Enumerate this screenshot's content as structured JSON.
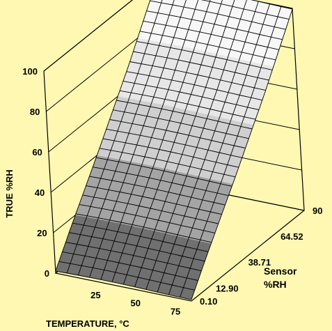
{
  "chart_data": {
    "type": "surface",
    "title": "",
    "zlabel": "TRUE %RH",
    "xlabel": "TEMPERATURE,  °C",
    "ylabel_line1": "Sensor",
    "ylabel_line2": "%RH",
    "z_ticks": [
      "0",
      "20",
      "40",
      "60",
      "80",
      "100"
    ],
    "x_ticks": [
      "25",
      "50",
      "75"
    ],
    "y_ticks": [
      "0.10",
      "12.90",
      "38.71",
      "64.52",
      "90"
    ],
    "x_range": [
      0,
      85
    ],
    "y_range": [
      0.1,
      90
    ],
    "z_range": [
      0,
      100
    ],
    "grid": true,
    "shading_bands": [
      {
        "z_min": 0,
        "z_max": 20,
        "color": "#707070"
      },
      {
        "z_min": 20,
        "z_max": 40,
        "color": "#a4a4a4"
      },
      {
        "z_min": 40,
        "z_max": 60,
        "color": "#cfcfcf"
      },
      {
        "z_min": 60,
        "z_max": 80,
        "color": "#e7e7e7"
      },
      {
        "z_min": 80,
        "z_max": 100,
        "color": "#f7f7f7"
      }
    ],
    "surface_true_rh_vs_sensor_rh": {
      "sensor_rh": [
        0.1,
        12.9,
        38.71,
        64.52,
        90
      ],
      "true_rh": [
        1,
        15,
        42,
        70,
        100
      ]
    }
  }
}
